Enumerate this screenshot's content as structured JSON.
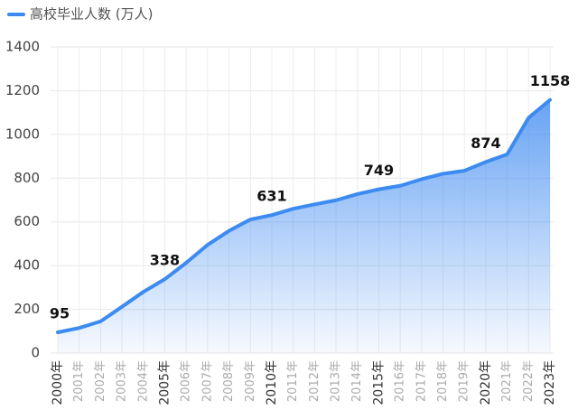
{
  "chart_data": {
    "type": "area",
    "categories": [
      "2000年",
      "2001年",
      "2002年",
      "2003年",
      "2004年",
      "2005年",
      "2006年",
      "2007年",
      "2008年",
      "2009年",
      "2010年",
      "2011年",
      "2012年",
      "2013年",
      "2014年",
      "2015年",
      "2016年",
      "2017年",
      "2018年",
      "2019年",
      "2020年",
      "2021年",
      "2022年",
      "2023年"
    ],
    "series": [
      {
        "name": "高校毕业人数 (万人)",
        "color": "#3d8bf0",
        "values": [
          95,
          115,
          145,
          212,
          280,
          338,
          413,
          495,
          559,
          611,
          631,
          660,
          680,
          699,
          727,
          749,
          765,
          795,
          820,
          834,
          874,
          909,
          1076,
          1158
        ],
        "value_labels": [
          "95",
          null,
          null,
          null,
          null,
          "338",
          null,
          null,
          null,
          null,
          "631",
          null,
          null,
          null,
          null,
          "749",
          null,
          null,
          null,
          null,
          "874",
          null,
          null,
          "1158"
        ]
      }
    ],
    "ylim": [
      0,
      1400
    ],
    "yticks": [
      0,
      200,
      400,
      600,
      800,
      1000,
      1200,
      1400
    ],
    "grid": true,
    "legend": "top-left"
  }
}
